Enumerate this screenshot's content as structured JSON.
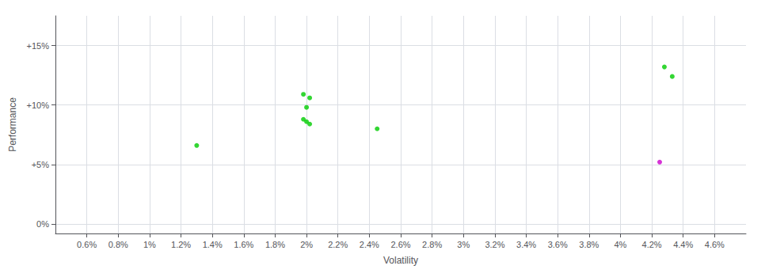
{
  "chart_data": {
    "type": "scatter",
    "xlabel": "Volatility",
    "ylabel": "Performance",
    "series": [
      {
        "color": "#00cc00",
        "x": [
          0.013,
          0.0198,
          0.0202,
          0.02,
          0.0198,
          0.02,
          0.0202,
          0.0245,
          0.0428,
          0.0433
        ],
        "values": [
          0.066,
          0.109,
          0.106,
          0.098,
          0.088,
          0.086,
          0.084,
          0.08,
          0.132,
          0.124
        ]
      },
      {
        "color": "#cc00cc",
        "x": [
          0.0425
        ],
        "values": [
          0.052
        ]
      }
    ],
    "xlim": [
      0.004,
      0.048
    ],
    "ylim": [
      -0.008,
      0.175
    ],
    "xticks": [
      {
        "value": 0.006,
        "label": "0.6%"
      },
      {
        "value": 0.008,
        "label": "0.8%"
      },
      {
        "value": 0.01,
        "label": "1%"
      },
      {
        "value": 0.012,
        "label": "1.2%"
      },
      {
        "value": 0.014,
        "label": "1.4%"
      },
      {
        "value": 0.016,
        "label": "1.6%"
      },
      {
        "value": 0.018,
        "label": "1.8%"
      },
      {
        "value": 0.02,
        "label": "2%"
      },
      {
        "value": 0.022,
        "label": "2.2%"
      },
      {
        "value": 0.024,
        "label": "2.4%"
      },
      {
        "value": 0.026,
        "label": "2.6%"
      },
      {
        "value": 0.028,
        "label": "2.8%"
      },
      {
        "value": 0.03,
        "label": "3%"
      },
      {
        "value": 0.032,
        "label": "3.2%"
      },
      {
        "value": 0.034,
        "label": "3.4%"
      },
      {
        "value": 0.036,
        "label": "3.6%"
      },
      {
        "value": 0.038,
        "label": "3.8%"
      },
      {
        "value": 0.04,
        "label": "4%"
      },
      {
        "value": 0.042,
        "label": "4.2%"
      },
      {
        "value": 0.044,
        "label": "4.4%"
      },
      {
        "value": 0.046,
        "label": "4.6%"
      }
    ],
    "yticks": [
      {
        "value": 0.0,
        "label": "0%"
      },
      {
        "value": 0.05,
        "label": "+5%"
      },
      {
        "value": 0.1,
        "label": "+10%"
      },
      {
        "value": 0.15,
        "label": "+15%"
      }
    ],
    "grid": true
  }
}
